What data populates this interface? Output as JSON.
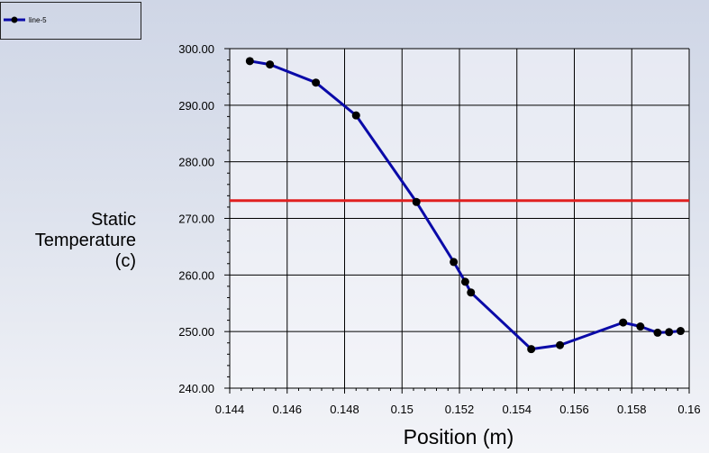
{
  "chart_data": {
    "type": "line",
    "title": "",
    "xlabel": "Position (m)",
    "ylabel_lines": [
      "Static",
      "Temperature",
      "(c)"
    ],
    "xlim": [
      0.144,
      0.16
    ],
    "ylim": [
      240,
      300
    ],
    "xticks": [
      0.144,
      0.146,
      0.148,
      0.15,
      0.152,
      0.154,
      0.156,
      0.158,
      0.16
    ],
    "xtick_labels": [
      "0.144",
      "0.146",
      "0.148",
      "0.15",
      "0.152",
      "0.154",
      "0.156",
      "0.158",
      "0.16"
    ],
    "yticks": [
      240,
      250,
      260,
      270,
      280,
      290,
      300
    ],
    "ytick_labels": [
      "240.00",
      "250.00",
      "260.00",
      "270.00",
      "280.00",
      "290.00",
      "300.00"
    ],
    "grid": true,
    "legend_position": "top-left",
    "series": [
      {
        "name": "line-5",
        "color": "#0a0aa8",
        "marker_color": "#000000",
        "x": [
          0.1447,
          0.1454,
          0.147,
          0.1484,
          0.1505,
          0.1518,
          0.1522,
          0.1524,
          0.1545,
          0.1555,
          0.1577,
          0.1583,
          0.1589,
          0.1593,
          0.1597
        ],
        "y": [
          297.8,
          297.2,
          294.0,
          288.2,
          272.9,
          262.3,
          258.8,
          256.9,
          246.9,
          247.6,
          251.6,
          250.9,
          249.8,
          249.9,
          250.1
        ]
      }
    ],
    "reference_lines": [
      {
        "axis": "y",
        "value": 273.15,
        "color": "#e02020"
      }
    ]
  }
}
